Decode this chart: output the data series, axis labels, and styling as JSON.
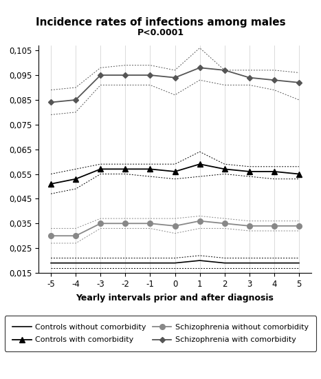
{
  "title": "Incidence rates of infections among males",
  "subtitle": "P<0.0001",
  "xlabel": "Yearly intervals prior and after diagnosis",
  "x": [
    -5,
    -4,
    -3,
    -2,
    -1,
    0,
    1,
    2,
    3,
    4,
    5
  ],
  "controls_without": [
    0.019,
    0.019,
    0.019,
    0.019,
    0.019,
    0.019,
    0.02,
    0.019,
    0.019,
    0.019,
    0.019
  ],
  "controls_without_upper": [
    0.021,
    0.021,
    0.021,
    0.021,
    0.021,
    0.021,
    0.022,
    0.021,
    0.021,
    0.021,
    0.021
  ],
  "controls_without_lower": [
    0.017,
    0.017,
    0.017,
    0.017,
    0.017,
    0.017,
    0.017,
    0.017,
    0.017,
    0.017,
    0.017
  ],
  "controls_with": [
    0.051,
    0.053,
    0.057,
    0.057,
    0.057,
    0.056,
    0.059,
    0.057,
    0.056,
    0.056,
    0.055
  ],
  "controls_with_upper": [
    0.055,
    0.057,
    0.059,
    0.059,
    0.059,
    0.059,
    0.064,
    0.059,
    0.058,
    0.058,
    0.058
  ],
  "controls_with_lower": [
    0.047,
    0.049,
    0.055,
    0.055,
    0.054,
    0.053,
    0.054,
    0.055,
    0.054,
    0.053,
    0.053
  ],
  "schiz_without": [
    0.03,
    0.03,
    0.035,
    0.035,
    0.035,
    0.034,
    0.036,
    0.035,
    0.034,
    0.034,
    0.034
  ],
  "schiz_without_upper": [
    0.033,
    0.033,
    0.037,
    0.037,
    0.037,
    0.037,
    0.038,
    0.037,
    0.036,
    0.036,
    0.036
  ],
  "schiz_without_lower": [
    0.027,
    0.027,
    0.033,
    0.033,
    0.033,
    0.031,
    0.033,
    0.033,
    0.032,
    0.032,
    0.032
  ],
  "schiz_with": [
    0.084,
    0.085,
    0.095,
    0.095,
    0.095,
    0.094,
    0.098,
    0.097,
    0.094,
    0.093,
    0.092
  ],
  "schiz_with_upper": [
    0.089,
    0.09,
    0.098,
    0.099,
    0.099,
    0.097,
    0.106,
    0.097,
    0.097,
    0.097,
    0.096
  ],
  "schiz_with_lower": [
    0.079,
    0.08,
    0.091,
    0.091,
    0.091,
    0.087,
    0.093,
    0.091,
    0.091,
    0.089,
    0.085
  ],
  "ylim": [
    0.015,
    0.107
  ],
  "yticks": [
    0.015,
    0.025,
    0.035,
    0.045,
    0.055,
    0.065,
    0.075,
    0.085,
    0.095,
    0.105
  ],
  "color_black": "#000000",
  "color_darkgray": "#555555",
  "color_gray": "#888888",
  "color_lightgray": "#aaaaaa"
}
